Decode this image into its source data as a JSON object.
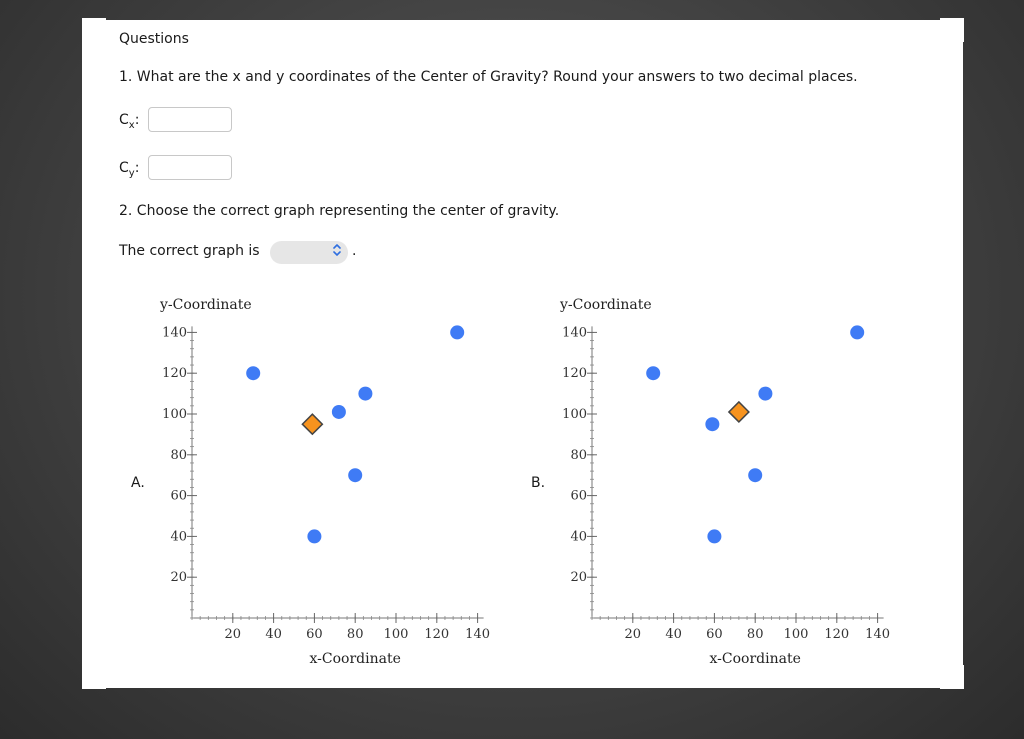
{
  "header": {
    "title": "Questions"
  },
  "question1": {
    "text": "1. What are the x and y coordinates of the Center of Gravity? Round your answers to two decimal places.",
    "cx_label_main": "C",
    "cx_label_sub": "x",
    "cy_label_main": "C",
    "cy_label_sub": "y",
    "colon": ":",
    "cx_value": "",
    "cy_value": ""
  },
  "question2": {
    "text": "2. Choose the correct graph representing the center of gravity.",
    "answer_prefix": "The correct graph is",
    "select_value": "",
    "select_icon": "up-down-chevron-icon",
    "period": "."
  },
  "colors": {
    "point": "#3f7bf5",
    "center": "#f7931e",
    "center_stroke": "#444444",
    "select_accent": "#2f6fe0"
  },
  "chart_data": [
    {
      "option_label": "A.",
      "type": "scatter",
      "xlabel": "x-Coordinate",
      "ylabel": "y-Coordinate",
      "xlim": [
        0,
        140
      ],
      "ylim": [
        0,
        140
      ],
      "x_ticks": [
        "20",
        "40",
        "60",
        "80",
        "100",
        "120",
        "140"
      ],
      "y_ticks": [
        "20",
        "40",
        "60",
        "80",
        "100",
        "120",
        "140"
      ],
      "points": [
        {
          "x": 30,
          "y": 120
        },
        {
          "x": 60,
          "y": 40
        },
        {
          "x": 72,
          "y": 101
        },
        {
          "x": 80,
          "y": 70
        },
        {
          "x": 85,
          "y": 110
        },
        {
          "x": 130,
          "y": 140
        }
      ],
      "center": {
        "x": 59,
        "y": 95
      }
    },
    {
      "option_label": "B.",
      "type": "scatter",
      "xlabel": "x-Coordinate",
      "ylabel": "y-Coordinate",
      "xlim": [
        0,
        140
      ],
      "ylim": [
        0,
        140
      ],
      "x_ticks": [
        "20",
        "40",
        "60",
        "80",
        "100",
        "120",
        "140"
      ],
      "y_ticks": [
        "20",
        "40",
        "60",
        "80",
        "100",
        "120",
        "140"
      ],
      "points": [
        {
          "x": 30,
          "y": 120
        },
        {
          "x": 59,
          "y": 95
        },
        {
          "x": 60,
          "y": 40
        },
        {
          "x": 80,
          "y": 70
        },
        {
          "x": 85,
          "y": 110
        },
        {
          "x": 130,
          "y": 140
        }
      ],
      "center": {
        "x": 72,
        "y": 101
      }
    }
  ]
}
